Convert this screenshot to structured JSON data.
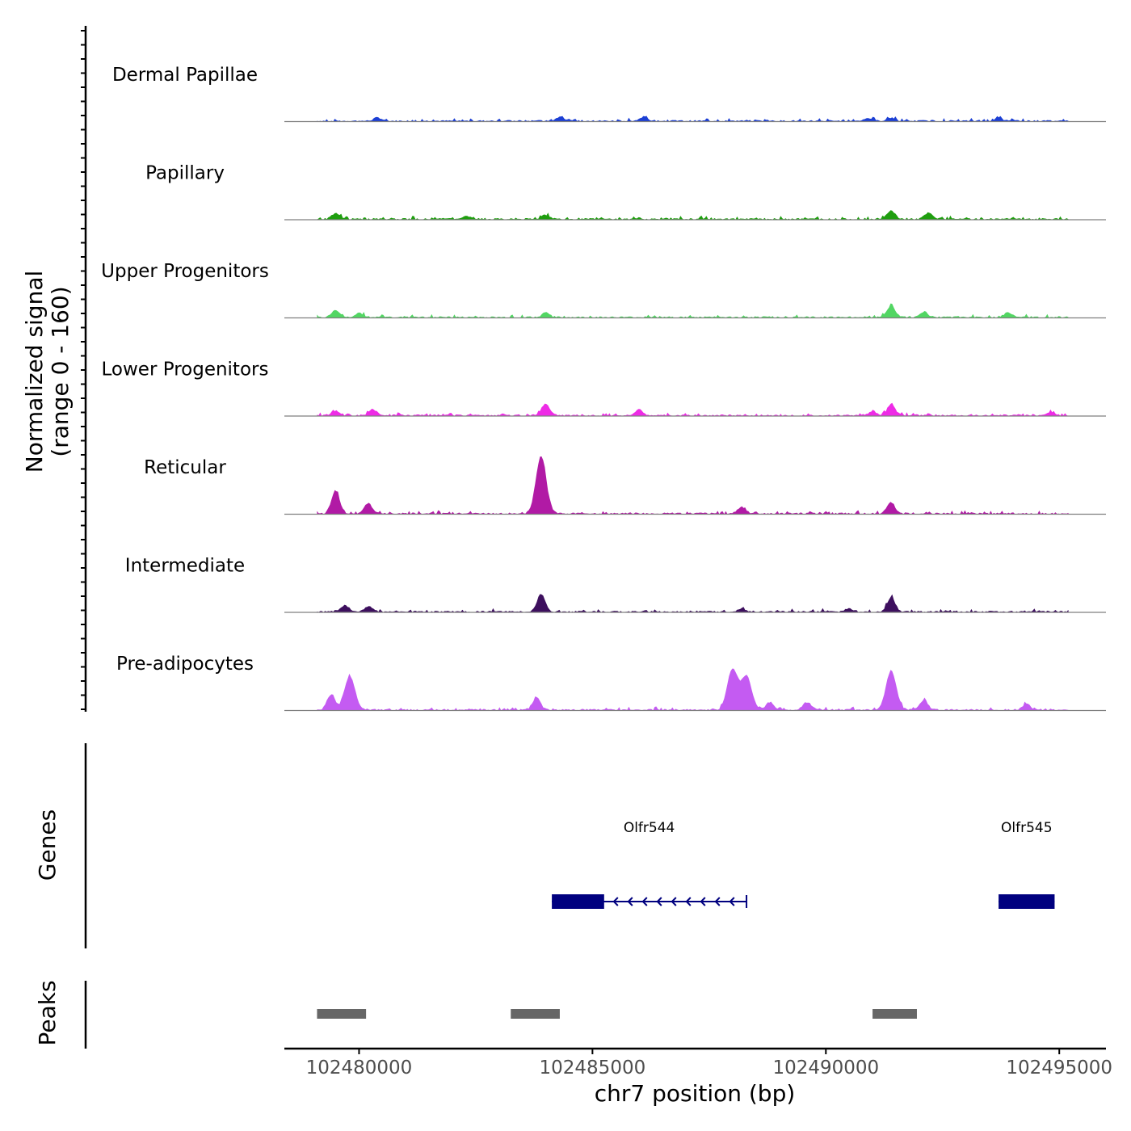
{
  "chart_data": {
    "type": "area",
    "y_axis_title_line1": "Normalized signal",
    "y_axis_title_line2": "(range 0 - 160)",
    "signal_range": [
      0,
      160
    ],
    "xlabel": "chr7 position (bp)",
    "xlim": [
      102478400,
      102496000
    ],
    "x_ticks": [
      102480000,
      102485000,
      102490000,
      102495000
    ],
    "x_tick_labels": [
      "102480000",
      "102485000",
      "102490000",
      "102495000"
    ],
    "signal_extent": [
      102479100,
      102495200
    ],
    "tracks": [
      {
        "name": "Dermal Papillae",
        "color": "#1c3fd4",
        "peaks": [
          [
            102480400,
            6
          ],
          [
            102484300,
            7
          ],
          [
            102486100,
            6
          ],
          [
            102490900,
            5
          ],
          [
            102491400,
            6
          ],
          [
            102493700,
            5
          ]
        ]
      },
      {
        "name": "Papillary",
        "color": "#1f9e0f",
        "peaks": [
          [
            102479500,
            11
          ],
          [
            102482300,
            6
          ],
          [
            102484000,
            8
          ],
          [
            102491400,
            15
          ],
          [
            102492200,
            11
          ]
        ]
      },
      {
        "name": "Upper Progenitors",
        "color": "#52d663",
        "peaks": [
          [
            102479500,
            12
          ],
          [
            102480000,
            8
          ],
          [
            102484000,
            8
          ],
          [
            102491400,
            22
          ],
          [
            102492100,
            10
          ],
          [
            102493900,
            8
          ]
        ]
      },
      {
        "name": "Lower Progenitors",
        "color": "#ee2be6",
        "peaks": [
          [
            102479500,
            9
          ],
          [
            102480300,
            10
          ],
          [
            102484000,
            22
          ],
          [
            102486000,
            10
          ],
          [
            102491000,
            8
          ],
          [
            102491400,
            20
          ],
          [
            102494800,
            6
          ]
        ]
      },
      {
        "name": "Reticular",
        "color": "#b11aa5",
        "peaks": [
          [
            102479500,
            42
          ],
          [
            102480200,
            18
          ],
          [
            102483900,
            105
          ],
          [
            102488200,
            12
          ],
          [
            102491400,
            20
          ]
        ]
      },
      {
        "name": "Intermediate",
        "color": "#3d0f5e",
        "peaks": [
          [
            102479700,
            12
          ],
          [
            102480200,
            10
          ],
          [
            102483900,
            32
          ],
          [
            102488200,
            6
          ],
          [
            102491400,
            26
          ],
          [
            102490500,
            6
          ]
        ]
      },
      {
        "name": "Pre-adipocytes",
        "color": "#c45bf2",
        "peaks": [
          [
            102479400,
            28
          ],
          [
            102479800,
            62
          ],
          [
            102483800,
            22
          ],
          [
            102488000,
            75
          ],
          [
            102488300,
            62
          ],
          [
            102491400,
            72
          ],
          [
            102492100,
            16
          ],
          [
            102488800,
            14
          ],
          [
            102489600,
            14
          ],
          [
            102494300,
            10
          ]
        ]
      }
    ],
    "genes_label": "Genes",
    "genes": [
      {
        "name": "Olfr544",
        "start": 102484130,
        "end": 102488300,
        "thick_start": 102484130,
        "thick_end": 102485250,
        "strand": "-"
      },
      {
        "name": "Olfr545",
        "start": 102493700,
        "end": 102494900,
        "thick_start": 102493700,
        "thick_end": 102494900,
        "strand": "-"
      }
    ],
    "peaks_label": "Peaks",
    "peak_regions": [
      [
        102479100,
        102480150
      ],
      [
        102483250,
        102484300
      ],
      [
        102491000,
        102491950
      ]
    ],
    "colors": {
      "gene": "#00007f",
      "peak": "#666666",
      "baseline": "#7f7f7f",
      "axis": "#000000"
    }
  }
}
